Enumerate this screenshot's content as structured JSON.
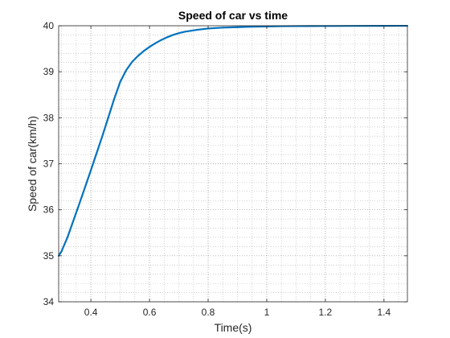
{
  "chart_data": {
    "type": "line",
    "title": "Speed of car vs time",
    "xlabel": "Time(s)",
    "ylabel": "Speed of car(km/h)",
    "xlim": [
      0.29,
      1.48
    ],
    "ylim": [
      34,
      40
    ],
    "xticks": [
      "0.4",
      "0.6",
      "0.8",
      "1",
      "1.2",
      "1.4"
    ],
    "yticks": [
      "34",
      "35",
      "36",
      "37",
      "38",
      "39",
      "40"
    ],
    "grid": "minor-dotted",
    "series": [
      {
        "color": "#0072bd",
        "x": [
          0.29,
          0.3,
          0.32,
          0.34,
          0.36,
          0.38,
          0.4,
          0.42,
          0.44,
          0.46,
          0.48,
          0.5,
          0.52,
          0.54,
          0.56,
          0.58,
          0.6,
          0.62,
          0.64,
          0.66,
          0.68,
          0.7,
          0.72,
          0.74,
          0.76,
          0.78,
          0.8,
          0.85,
          0.9,
          0.95,
          1.0,
          1.05,
          1.1,
          1.2,
          1.3,
          1.4,
          1.48
        ],
        "y": [
          35.0,
          35.1,
          35.4,
          35.76,
          36.12,
          36.49,
          36.86,
          37.24,
          37.62,
          38.02,
          38.42,
          38.78,
          39.03,
          39.21,
          39.34,
          39.45,
          39.54,
          39.62,
          39.69,
          39.75,
          39.8,
          39.84,
          39.87,
          39.89,
          39.91,
          39.925,
          39.94,
          39.96,
          39.97,
          39.98,
          39.985,
          39.99,
          39.992,
          39.995,
          39.997,
          39.998,
          39.999
        ]
      }
    ]
  }
}
